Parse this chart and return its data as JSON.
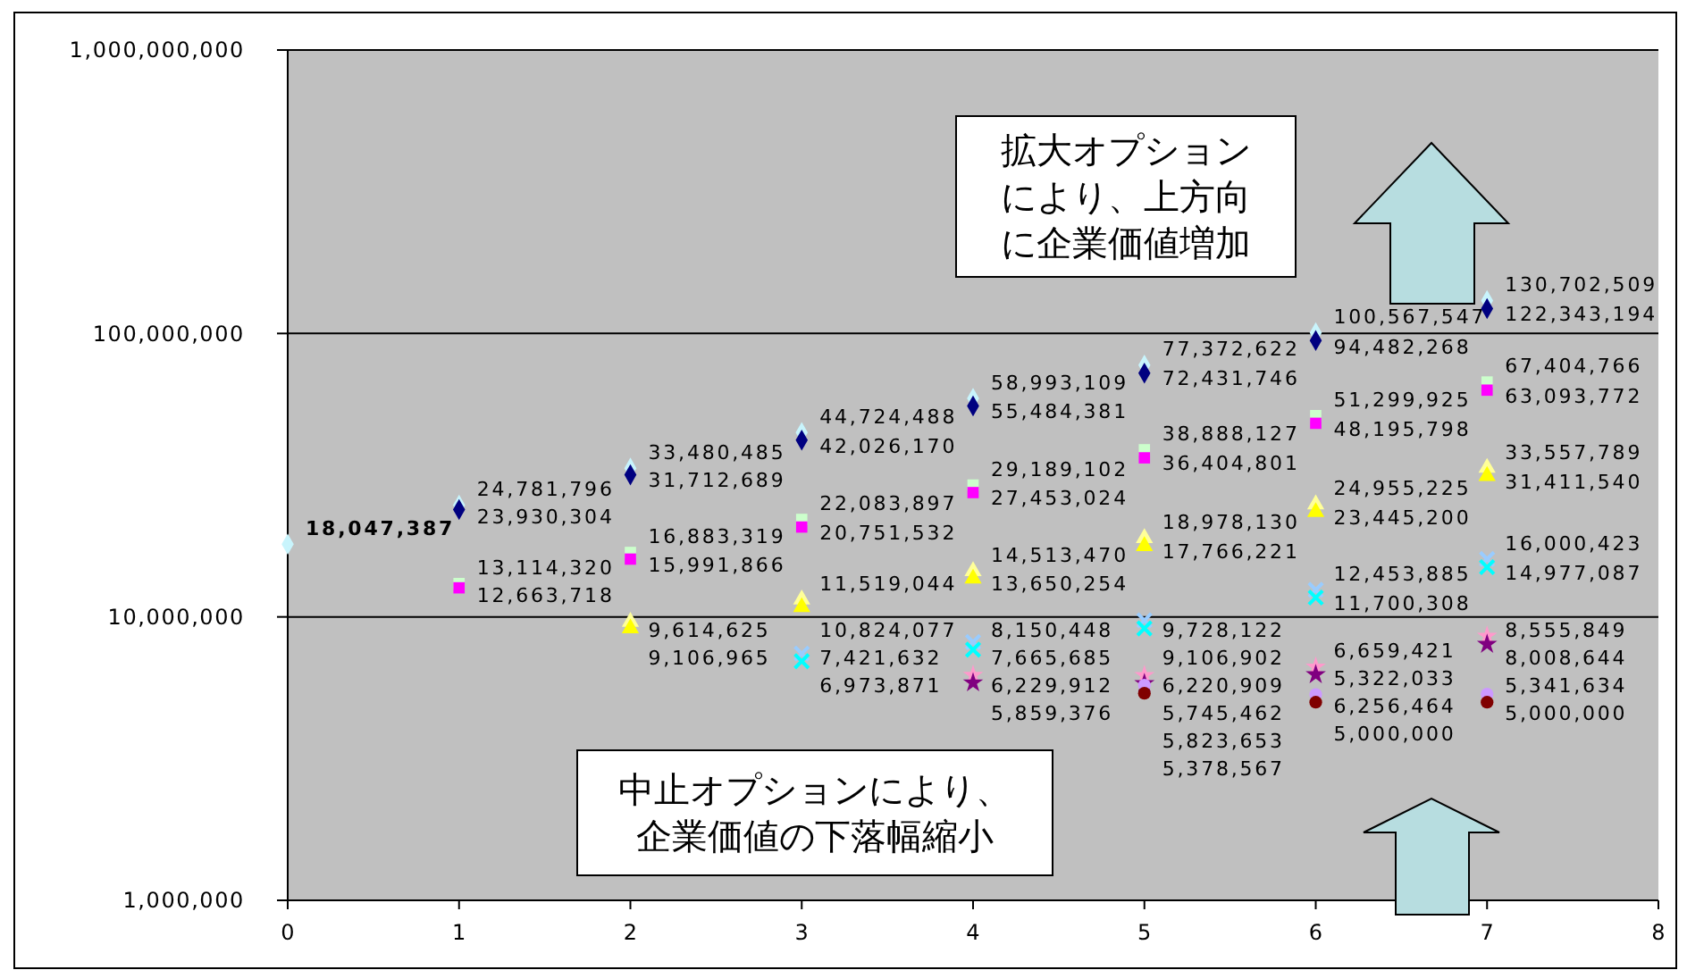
{
  "chart_data": {
    "type": "scatter",
    "xlim": [
      0,
      8
    ],
    "xticks": [
      0,
      1,
      2,
      3,
      4,
      5,
      6,
      7,
      8
    ],
    "ylim": [
      1000000,
      1000000000
    ],
    "log": true,
    "yticks": [
      {
        "value": 1000000,
        "label": "1,000,000"
      },
      {
        "value": 10000000,
        "label": "10,000,000"
      },
      {
        "value": 100000000,
        "label": "100,000,000"
      },
      {
        "value": 1000000000,
        "label": "1,000,000,000"
      }
    ],
    "grid": "y",
    "annotations": [
      "拡大オプションにより、上方向に企業価値増加",
      "中止オプションにより、企業価値の下落幅縮小"
    ],
    "series": [
      {
        "color": "#c8f4fc",
        "marker": "diamond",
        "x": [
          0,
          1,
          2,
          3,
          4,
          5,
          6,
          7
        ],
        "values": [
          18047387,
          24781796,
          33480485,
          44724488,
          58993109,
          77372622,
          100567547,
          130702509
        ],
        "value_labels": [
          "18,047,387",
          "24,781,796",
          "33,480,485",
          "44,724,488",
          "58,993,109",
          "77,372,622",
          "100,567,547",
          "130,702,509"
        ]
      },
      {
        "color": "#000080",
        "marker": "diamond",
        "x": [
          1,
          2,
          3,
          4,
          5,
          6,
          7
        ],
        "values": [
          23930304,
          31712689,
          42026170,
          55484381,
          72431746,
          94482268,
          122343194
        ],
        "value_labels": [
          "23,930,304",
          "31,712,689",
          "42,026,170",
          "55,484,381",
          "72,431,746",
          "94,482,268",
          "122,343,194"
        ]
      },
      {
        "color": "#ccffcc",
        "marker": "square",
        "x": [
          1,
          2,
          3,
          4,
          5,
          6,
          7
        ],
        "values": [
          13114320,
          16883319,
          22083897,
          29189102,
          38888127,
          51299925,
          67404766
        ],
        "value_labels": [
          "13,114,320",
          "16,883,319",
          "22,083,897",
          "29,189,102",
          "38,888,127",
          "51,299,925",
          "67,404,766"
        ]
      },
      {
        "color": "#ff00ff",
        "marker": "square",
        "x": [
          1,
          2,
          3,
          4,
          5,
          6,
          7
        ],
        "values": [
          12663718,
          15991866,
          20751532,
          27453024,
          36404801,
          48195798,
          63093772
        ],
        "value_labels": [
          "12,663,718",
          "15,991,866",
          "20,751,532",
          "27,453,024",
          "36,404,801",
          "48,195,798",
          "63,093,772"
        ]
      },
      {
        "color": "#ffff99",
        "marker": "triangle",
        "x": [
          2,
          3,
          4,
          5,
          6,
          7
        ],
        "values": [
          9614625,
          11519044,
          14513470,
          18978130,
          24955225,
          33557789
        ],
        "value_labels": [
          "9,614,625",
          "11,519,044",
          "14,513,470",
          "18,978,130",
          "24,955,225",
          "33,557,789"
        ]
      },
      {
        "color": "#ffff00",
        "marker": "triangle",
        "x": [
          2,
          3,
          4,
          5,
          6,
          7
        ],
        "values": [
          9106965,
          10824077,
          13650254,
          17766221,
          23445200,
          31411540
        ],
        "value_labels": [
          "9,106,965",
          "10,824,077",
          "13,650,254",
          "17,766,221",
          "23,445,200",
          "31,411,540"
        ]
      },
      {
        "color": "#99ccff",
        "marker": "cross",
        "x": [
          3,
          4,
          5,
          6,
          7
        ],
        "values": [
          7421632,
          8150448,
          9728122,
          12453885,
          16000423
        ],
        "value_labels": [
          "7,421,632",
          "8,150,448",
          "9,728,122",
          "12,453,885",
          "16,000,423"
        ]
      },
      {
        "color": "#00ffff",
        "marker": "cross",
        "x": [
          3,
          4,
          5,
          6,
          7
        ],
        "values": [
          6973871,
          7665685,
          9106902,
          11700308,
          14977087
        ],
        "value_labels": [
          "6,973,871",
          "7,665,685",
          "9,106,902",
          "11,700,308",
          "14,977,087"
        ]
      },
      {
        "color": "#ff99cc",
        "marker": "star",
        "x": [
          4,
          5,
          6,
          7
        ],
        "values": [
          6229912,
          6220909,
          6659421,
          8555849
        ],
        "value_labels": [
          "6,229,912",
          "6,220,909",
          "6,659,421",
          "8,555,849"
        ]
      },
      {
        "color": "#800080",
        "marker": "star",
        "x": [
          4,
          5,
          6,
          7
        ],
        "values": [
          5859376,
          5823653,
          6256464,
          8008644
        ],
        "value_labels": [
          "5,859,376",
          "5,823,653",
          "6,256,464",
          "8,008,644"
        ]
      },
      {
        "color": "#cc99ff",
        "marker": "circle",
        "x": [
          5,
          6,
          7
        ],
        "values": [
          5745462,
          5322033,
          5341634
        ],
        "value_labels": [
          "5,745,462",
          "5,322,033",
          "5,341,634"
        ]
      },
      {
        "color": "#800000",
        "marker": "circle",
        "x": [
          5,
          6,
          7
        ],
        "values": [
          5378567,
          5000000,
          5000000
        ],
        "value_labels": [
          "5,378,567",
          "5,000,000",
          "5,000,000"
        ]
      }
    ]
  }
}
